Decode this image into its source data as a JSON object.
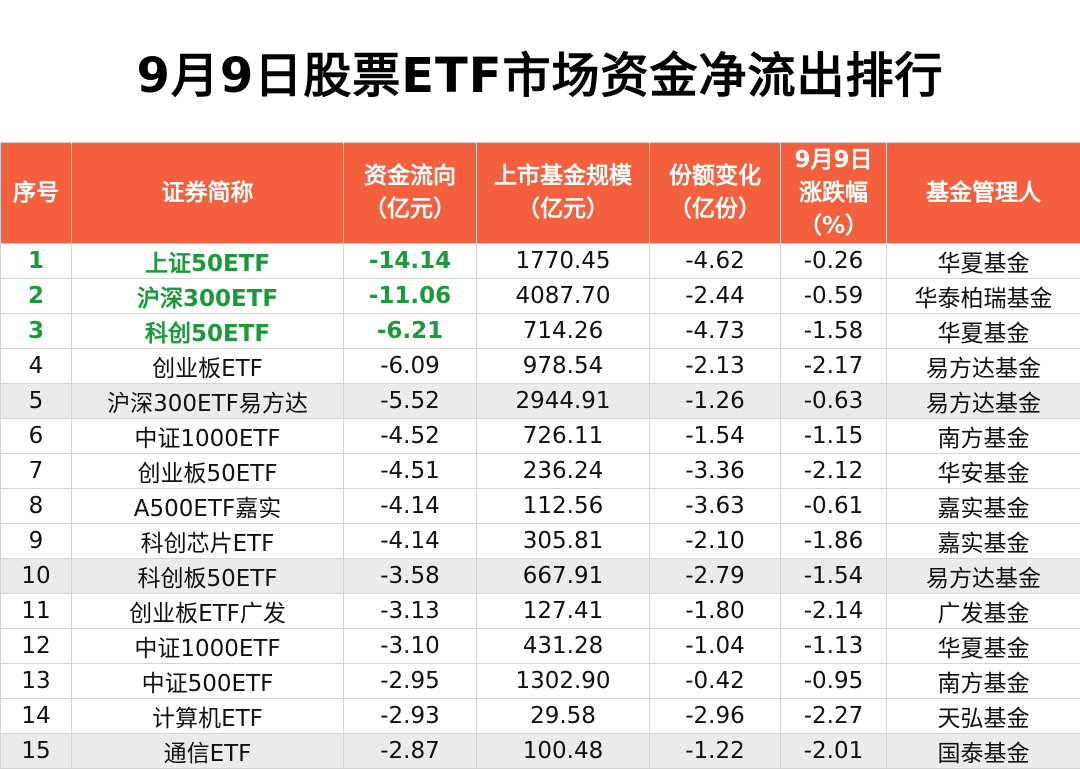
{
  "title": "9月9日股票ETF市场资金净流出排行",
  "headers": {
    "idx": "序号",
    "name": "证券简称",
    "flow": [
      "资金流向",
      "（亿元）"
    ],
    "scale": [
      "上市基金规模",
      "（亿元）"
    ],
    "share": [
      "份额变化",
      "（亿份）"
    ],
    "change": [
      "9月9日",
      "涨跌幅",
      "（%）"
    ],
    "manager": "基金管理人"
  },
  "rows": [
    {
      "idx": "1",
      "name": "上证50ETF",
      "flow": "-14.14",
      "scale": "1770.45",
      "share": "-4.62",
      "change": "-0.26",
      "manager": "华夏基金"
    },
    {
      "idx": "2",
      "name": "沪深300ETF",
      "flow": "-11.06",
      "scale": "4087.70",
      "share": "-2.44",
      "change": "-0.59",
      "manager": "华泰柏瑞基金"
    },
    {
      "idx": "3",
      "name": "科创50ETF",
      "flow": "-6.21",
      "scale": "714.26",
      "share": "-4.73",
      "change": "-1.58",
      "manager": "华夏基金"
    },
    {
      "idx": "4",
      "name": "创业板ETF",
      "flow": "-6.09",
      "scale": "978.54",
      "share": "-2.13",
      "change": "-2.17",
      "manager": "易方达基金"
    },
    {
      "idx": "5",
      "name": "沪深300ETF易方达",
      "flow": "-5.52",
      "scale": "2944.91",
      "share": "-1.26",
      "change": "-0.63",
      "manager": "易方达基金"
    },
    {
      "idx": "6",
      "name": "中证1000ETF",
      "flow": "-4.52",
      "scale": "726.11",
      "share": "-1.54",
      "change": "-1.15",
      "manager": "南方基金"
    },
    {
      "idx": "7",
      "name": "创业板50ETF",
      "flow": "-4.51",
      "scale": "236.24",
      "share": "-3.36",
      "change": "-2.12",
      "manager": "华安基金"
    },
    {
      "idx": "8",
      "name": "A500ETF嘉实",
      "flow": "-4.14",
      "scale": "112.56",
      "share": "-3.63",
      "change": "-0.61",
      "manager": "嘉实基金"
    },
    {
      "idx": "9",
      "name": "科创芯片ETF",
      "flow": "-4.14",
      "scale": "305.81",
      "share": "-2.10",
      "change": "-1.86",
      "manager": "嘉实基金"
    },
    {
      "idx": "10",
      "name": "科创板50ETF",
      "flow": "-3.58",
      "scale": "667.91",
      "share": "-2.79",
      "change": "-1.54",
      "manager": "易方达基金"
    },
    {
      "idx": "11",
      "name": "创业板ETF广发",
      "flow": "-3.13",
      "scale": "127.41",
      "share": "-1.80",
      "change": "-2.14",
      "manager": "广发基金"
    },
    {
      "idx": "12",
      "name": "中证1000ETF",
      "flow": "-3.10",
      "scale": "431.28",
      "share": "-1.04",
      "change": "-1.13",
      "manager": "华夏基金"
    },
    {
      "idx": "13",
      "name": "中证500ETF",
      "flow": "-2.95",
      "scale": "1302.90",
      "share": "-0.42",
      "change": "-0.95",
      "manager": "南方基金"
    },
    {
      "idx": "14",
      "name": "计算机ETF",
      "flow": "-2.93",
      "scale": "29.58",
      "share": "-2.96",
      "change": "-2.27",
      "manager": "天弘基金"
    },
    {
      "idx": "15",
      "name": "通信ETF",
      "flow": "-2.87",
      "scale": "100.48",
      "share": "-1.22",
      "change": "-2.01",
      "manager": "国泰基金"
    }
  ],
  "style": {
    "header_bg": "#f4603e",
    "highlight_text": "#1b9a3a",
    "shade_row_bg": "#ebebeb"
  }
}
